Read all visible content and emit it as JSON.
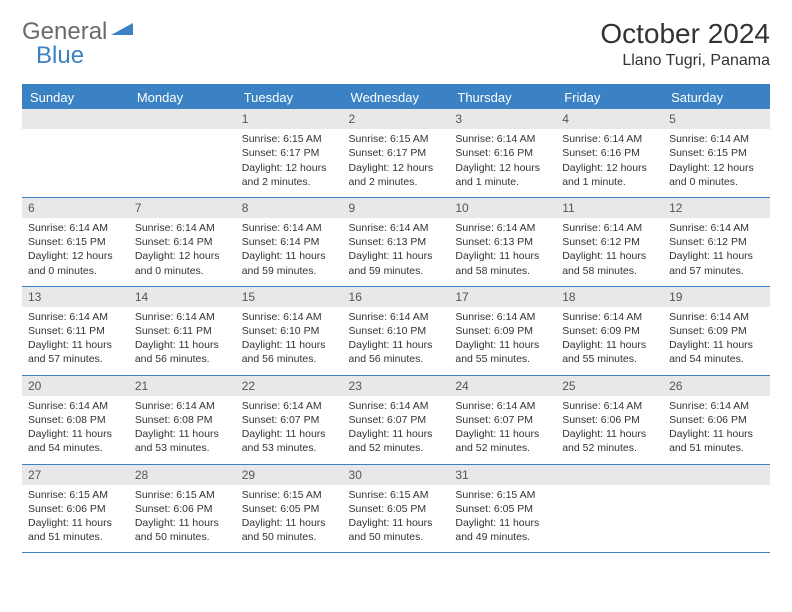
{
  "logo": {
    "text1": "General",
    "text2": "Blue"
  },
  "title": "October 2024",
  "location": "Llano Tugri, Panama",
  "headers": [
    "Sunday",
    "Monday",
    "Tuesday",
    "Wednesday",
    "Thursday",
    "Friday",
    "Saturday"
  ],
  "colors": {
    "accent": "#3b82c4",
    "headerRow": "#e8e8e8",
    "text": "#333333",
    "logoGray": "#6b6b6b"
  },
  "font": {
    "title_pt": 28,
    "location_pt": 16,
    "th_pt": 13,
    "daynum_pt": 12,
    "cell_pt": 10.5
  },
  "weeks": [
    [
      null,
      null,
      {
        "n": "1",
        "sunrise": "6:15 AM",
        "sunset": "6:17 PM",
        "daylight": "12 hours and 2 minutes."
      },
      {
        "n": "2",
        "sunrise": "6:15 AM",
        "sunset": "6:17 PM",
        "daylight": "12 hours and 2 minutes."
      },
      {
        "n": "3",
        "sunrise": "6:14 AM",
        "sunset": "6:16 PM",
        "daylight": "12 hours and 1 minute."
      },
      {
        "n": "4",
        "sunrise": "6:14 AM",
        "sunset": "6:16 PM",
        "daylight": "12 hours and 1 minute."
      },
      {
        "n": "5",
        "sunrise": "6:14 AM",
        "sunset": "6:15 PM",
        "daylight": "12 hours and 0 minutes."
      }
    ],
    [
      {
        "n": "6",
        "sunrise": "6:14 AM",
        "sunset": "6:15 PM",
        "daylight": "12 hours and 0 minutes."
      },
      {
        "n": "7",
        "sunrise": "6:14 AM",
        "sunset": "6:14 PM",
        "daylight": "12 hours and 0 minutes."
      },
      {
        "n": "8",
        "sunrise": "6:14 AM",
        "sunset": "6:14 PM",
        "daylight": "11 hours and 59 minutes."
      },
      {
        "n": "9",
        "sunrise": "6:14 AM",
        "sunset": "6:13 PM",
        "daylight": "11 hours and 59 minutes."
      },
      {
        "n": "10",
        "sunrise": "6:14 AM",
        "sunset": "6:13 PM",
        "daylight": "11 hours and 58 minutes."
      },
      {
        "n": "11",
        "sunrise": "6:14 AM",
        "sunset": "6:12 PM",
        "daylight": "11 hours and 58 minutes."
      },
      {
        "n": "12",
        "sunrise": "6:14 AM",
        "sunset": "6:12 PM",
        "daylight": "11 hours and 57 minutes."
      }
    ],
    [
      {
        "n": "13",
        "sunrise": "6:14 AM",
        "sunset": "6:11 PM",
        "daylight": "11 hours and 57 minutes."
      },
      {
        "n": "14",
        "sunrise": "6:14 AM",
        "sunset": "6:11 PM",
        "daylight": "11 hours and 56 minutes."
      },
      {
        "n": "15",
        "sunrise": "6:14 AM",
        "sunset": "6:10 PM",
        "daylight": "11 hours and 56 minutes."
      },
      {
        "n": "16",
        "sunrise": "6:14 AM",
        "sunset": "6:10 PM",
        "daylight": "11 hours and 56 minutes."
      },
      {
        "n": "17",
        "sunrise": "6:14 AM",
        "sunset": "6:09 PM",
        "daylight": "11 hours and 55 minutes."
      },
      {
        "n": "18",
        "sunrise": "6:14 AM",
        "sunset": "6:09 PM",
        "daylight": "11 hours and 55 minutes."
      },
      {
        "n": "19",
        "sunrise": "6:14 AM",
        "sunset": "6:09 PM",
        "daylight": "11 hours and 54 minutes."
      }
    ],
    [
      {
        "n": "20",
        "sunrise": "6:14 AM",
        "sunset": "6:08 PM",
        "daylight": "11 hours and 54 minutes."
      },
      {
        "n": "21",
        "sunrise": "6:14 AM",
        "sunset": "6:08 PM",
        "daylight": "11 hours and 53 minutes."
      },
      {
        "n": "22",
        "sunrise": "6:14 AM",
        "sunset": "6:07 PM",
        "daylight": "11 hours and 53 minutes."
      },
      {
        "n": "23",
        "sunrise": "6:14 AM",
        "sunset": "6:07 PM",
        "daylight": "11 hours and 52 minutes."
      },
      {
        "n": "24",
        "sunrise": "6:14 AM",
        "sunset": "6:07 PM",
        "daylight": "11 hours and 52 minutes."
      },
      {
        "n": "25",
        "sunrise": "6:14 AM",
        "sunset": "6:06 PM",
        "daylight": "11 hours and 52 minutes."
      },
      {
        "n": "26",
        "sunrise": "6:14 AM",
        "sunset": "6:06 PM",
        "daylight": "11 hours and 51 minutes."
      }
    ],
    [
      {
        "n": "27",
        "sunrise": "6:15 AM",
        "sunset": "6:06 PM",
        "daylight": "11 hours and 51 minutes."
      },
      {
        "n": "28",
        "sunrise": "6:15 AM",
        "sunset": "6:06 PM",
        "daylight": "11 hours and 50 minutes."
      },
      {
        "n": "29",
        "sunrise": "6:15 AM",
        "sunset": "6:05 PM",
        "daylight": "11 hours and 50 minutes."
      },
      {
        "n": "30",
        "sunrise": "6:15 AM",
        "sunset": "6:05 PM",
        "daylight": "11 hours and 50 minutes."
      },
      {
        "n": "31",
        "sunrise": "6:15 AM",
        "sunset": "6:05 PM",
        "daylight": "11 hours and 49 minutes."
      },
      null,
      null
    ]
  ],
  "labels": {
    "sunrise": "Sunrise:",
    "sunset": "Sunset:",
    "daylight": "Daylight:"
  }
}
